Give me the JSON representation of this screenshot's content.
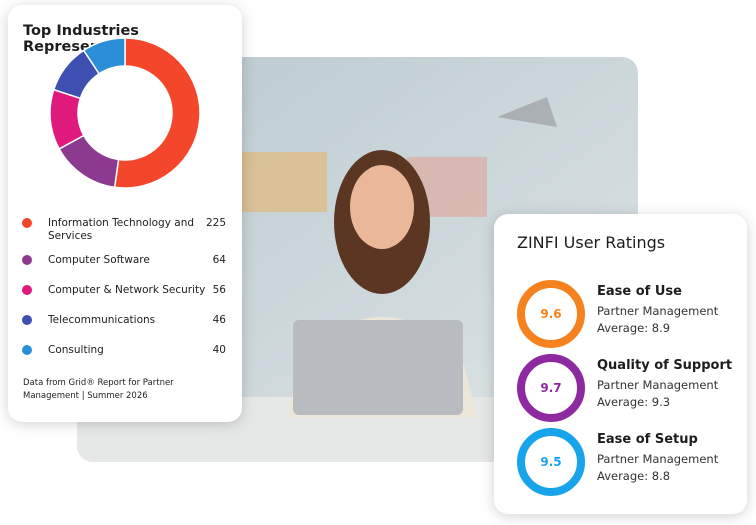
{
  "chart_data": {
    "type": "donut",
    "title": "Top Industries Represented",
    "categories": [
      "Information Technology and Services",
      "Computer Software",
      "Computer & Network Security",
      "Telecommunications",
      "Consulting"
    ],
    "values": [
      225,
      64,
      56,
      46,
      40
    ],
    "colors": [
      "#f4462a",
      "#8b3a8f",
      "#e01a7c",
      "#3d4fb0",
      "#2a8fd8"
    ],
    "note": "Data from Grid® Report for Partner Management | Summer 2026"
  },
  "ratings": {
    "title": "ZINFI User Ratings",
    "items": [
      {
        "name": "Ease of Use",
        "score": 9.6,
        "subtitle": "Partner Management",
        "average_label": "Average:",
        "average": 8.9,
        "color": "#f5821f"
      },
      {
        "name": "Quality of Support",
        "score": 9.7,
        "subtitle": "Partner Management",
        "average_label": "Average:",
        "average": 9.3,
        "color": "#8e2aa0"
      },
      {
        "name": "Ease of Setup",
        "score": 9.5,
        "subtitle": "Partner Management",
        "average_label": "Average:",
        "average": 8.8,
        "color": "#17a4ea"
      }
    ]
  }
}
